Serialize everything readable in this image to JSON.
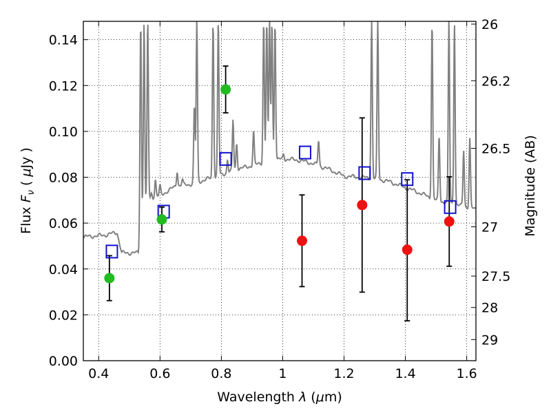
{
  "chart_data": {
    "type": "scatter",
    "xlabel": "Wavelength  λ (μm)",
    "ylabel": "Flux  F_ν  ( μJy )",
    "ylabel_parts": [
      "Flux  ",
      "F",
      "ν",
      "  ( ",
      "μ",
      "Jy )"
    ],
    "xlabel_parts": [
      "Wavelength  ",
      "λ",
      " (",
      "μ",
      "m)"
    ],
    "y2label": "Magnitude (AB)",
    "xlim": [
      0.35,
      1.63
    ],
    "ylim": [
      0.0,
      0.148
    ],
    "x_ticks": [
      0.4,
      0.6,
      0.8,
      1.0,
      1.2,
      1.4,
      1.6
    ],
    "x_tick_labels": [
      "0.4",
      "0.6",
      "0.8",
      "1",
      "1.2",
      "1.4",
      "1.6"
    ],
    "y_ticks": [
      0.0,
      0.02,
      0.04,
      0.06,
      0.08,
      0.1,
      0.12,
      0.14
    ],
    "y_tick_labels": [
      "0.00",
      "0.02",
      "0.04",
      "0.06",
      "0.08",
      "0.10",
      "0.12",
      "0.14"
    ],
    "y2_ticks": [
      {
        "label": "26",
        "flux": 0.1468
      },
      {
        "label": "26.2",
        "flux": 0.1221
      },
      {
        "label": "26.5",
        "flux": 0.0926
      },
      {
        "label": "27",
        "flux": 0.0584
      },
      {
        "label": "27.5",
        "flux": 0.0369
      },
      {
        "label": "28",
        "flux": 0.0232
      },
      {
        "label": "29",
        "flux": 0.0092
      }
    ],
    "grid": true,
    "colors": {
      "sed": "#808080",
      "detection": "#22bb22",
      "upper_limit": "#ee1111",
      "model_box": "#1111cc",
      "errorbar": "#000000"
    },
    "series": [
      {
        "kind": "detections",
        "x": [
          0.435,
          0.606,
          0.814
        ],
        "y": [
          0.036,
          0.0616,
          0.1183
        ],
        "yerr": [
          0.0098,
          0.0054,
          0.0102
        ]
      },
      {
        "kind": "non-detections",
        "x": [
          1.063,
          1.259,
          1.406,
          1.543
        ],
        "y": [
          0.0523,
          0.0679,
          0.0484,
          0.0607
        ],
        "yerr_low": [
          0.02,
          0.038,
          0.031,
          0.0195
        ],
        "yerr_high": [
          0.02,
          0.038,
          0.0305,
          0.0195
        ]
      },
      {
        "kind": "model-photometry",
        "x": [
          0.443,
          0.612,
          0.814,
          1.073,
          1.267,
          1.406,
          1.546
        ],
        "y": [
          0.0476,
          0.065,
          0.088,
          0.0908,
          0.0818,
          0.0792,
          0.067
        ]
      },
      {
        "kind": "sed-continuum",
        "x": [
          0.35,
          0.4,
          0.43,
          0.46,
          0.475,
          0.53,
          0.535,
          0.55,
          0.56,
          0.58,
          0.6,
          0.65,
          0.7,
          0.75,
          0.8,
          0.85,
          0.9,
          0.95,
          1.0,
          1.05,
          1.1,
          1.15,
          1.2,
          1.25,
          1.3,
          1.35,
          1.4,
          1.45,
          1.5,
          1.55,
          1.6,
          1.63
        ],
        "y": [
          0.054,
          0.0545,
          0.055,
          0.056,
          0.047,
          0.047,
          0.06,
          0.0655,
          0.07,
          0.0715,
          0.072,
          0.076,
          0.077,
          0.079,
          0.081,
          0.0835,
          0.085,
          0.087,
          0.088,
          0.0875,
          0.086,
          0.0835,
          0.0805,
          0.08,
          0.0795,
          0.078,
          0.0755,
          0.073,
          0.07,
          0.0685,
          0.067,
          0.066
        ]
      },
      {
        "kind": "sed-emission-lines",
        "x": [
          0.537,
          0.548,
          0.56,
          0.572,
          0.585,
          0.6,
          0.656,
          0.673,
          0.712,
          0.72,
          0.773,
          0.79,
          0.82,
          0.838,
          0.85,
          0.905,
          0.938,
          0.948,
          0.957,
          0.965,
          0.975,
          1.003,
          1.117,
          1.29,
          1.31,
          1.487,
          1.51,
          1.542,
          1.56,
          1.59,
          1.61
        ],
        "peak": [
          0.148,
          0.148,
          0.148,
          0.073,
          0.079,
          0.076,
          0.083,
          0.079,
          0.111,
          0.148,
          0.148,
          0.148,
          0.088,
          0.105,
          0.095,
          0.1,
          0.148,
          0.148,
          0.148,
          0.148,
          0.148,
          0.09,
          0.096,
          0.148,
          0.148,
          0.148,
          0.098,
          0.148,
          0.148,
          0.092,
          0.097
        ]
      }
    ]
  }
}
